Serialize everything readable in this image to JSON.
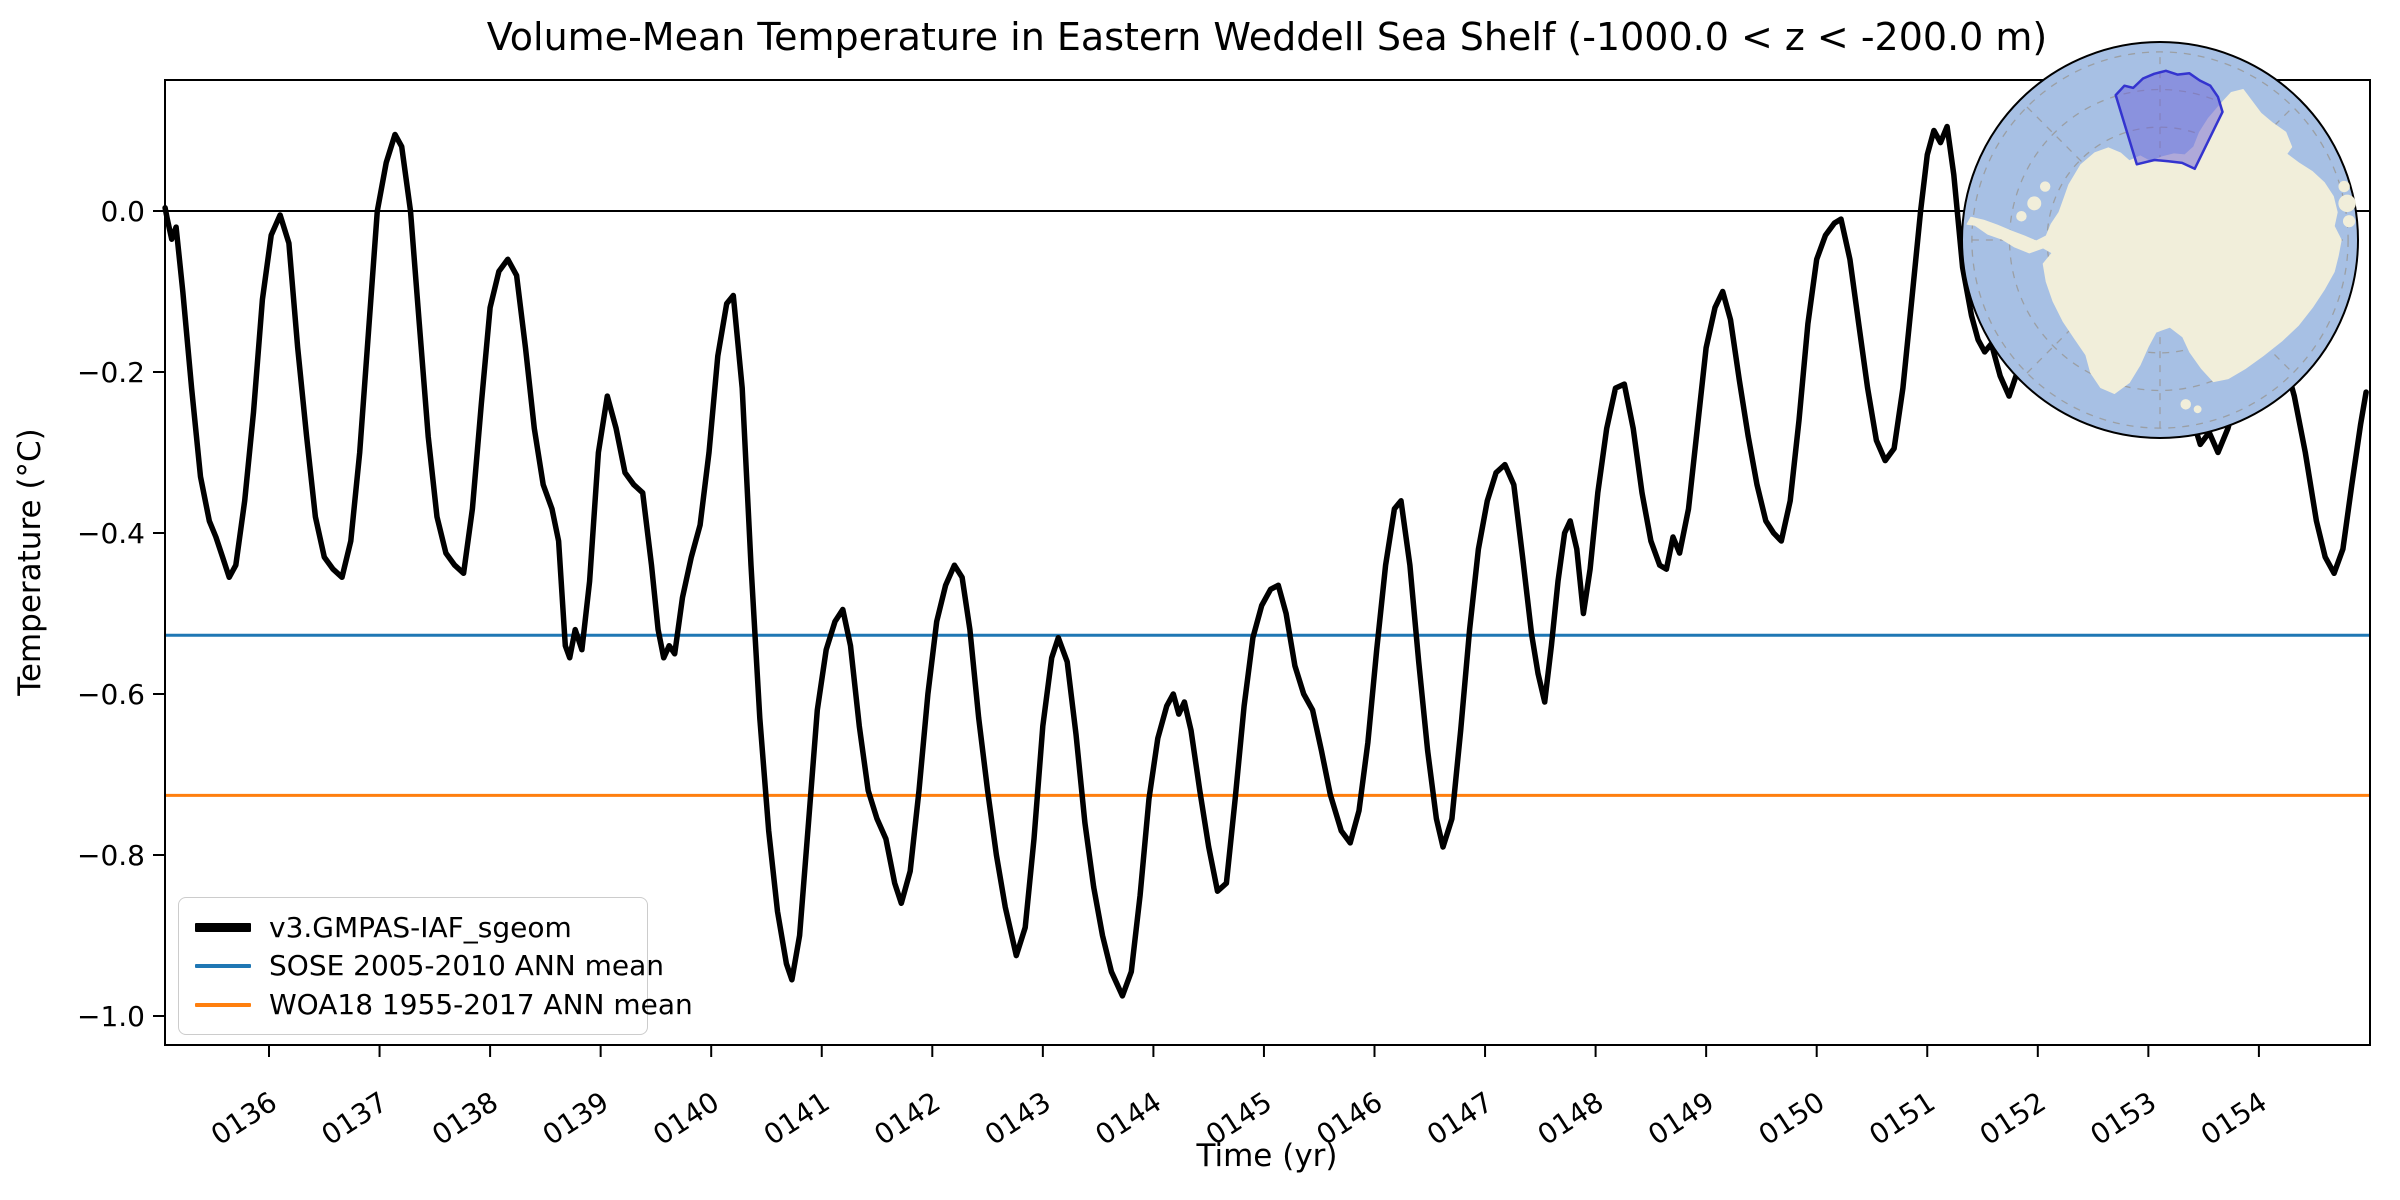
{
  "title": "Volume-Mean Temperature in Eastern Weddell Sea Shelf (-1000.0 < z < -200.0 m)",
  "xlabel": "Time (yr)",
  "ylabel": "Temperature (°C)",
  "legend": [
    {
      "label": "v3.GMPAS-IAF_sgeom",
      "color": "#000000"
    },
    {
      "label": "SOSE 2005-2010 ANN mean",
      "color": "#1f77b4"
    },
    {
      "label": "WOA18 1955-2017 ANN mean",
      "color": "#ff7f0e"
    }
  ],
  "chart_data": {
    "type": "line",
    "title": "Volume-Mean Temperature in Eastern Weddell Sea Shelf (-1000.0 < z < -200.0 m)",
    "xlabel": "Time (yr)",
    "ylabel": "Temperature (°C)",
    "xlim": [
      135.05,
      155.0
    ],
    "ylim": [
      -1.036,
      0.163
    ],
    "grid": false,
    "legend_position": "lower left",
    "x_tick_rotation": 33,
    "x_ticks": [
      {
        "value": 136,
        "label": "0136"
      },
      {
        "value": 137,
        "label": "0137"
      },
      {
        "value": 138,
        "label": "0138"
      },
      {
        "value": 139,
        "label": "0139"
      },
      {
        "value": 140,
        "label": "0140"
      },
      {
        "value": 141,
        "label": "0141"
      },
      {
        "value": 142,
        "label": "0142"
      },
      {
        "value": 143,
        "label": "0143"
      },
      {
        "value": 144,
        "label": "0144"
      },
      {
        "value": 145,
        "label": "0145"
      },
      {
        "value": 146,
        "label": "0146"
      },
      {
        "value": 147,
        "label": "0147"
      },
      {
        "value": 148,
        "label": "0148"
      },
      {
        "value": 149,
        "label": "0149"
      },
      {
        "value": 150,
        "label": "0150"
      },
      {
        "value": 151,
        "label": "0151"
      },
      {
        "value": 152,
        "label": "0152"
      },
      {
        "value": 153,
        "label": "0153"
      },
      {
        "value": 154,
        "label": "0154"
      }
    ],
    "y_ticks": [
      {
        "value": 0.0,
        "label": "0.0"
      },
      {
        "value": -0.2,
        "label": "−0.2"
      },
      {
        "value": -0.4,
        "label": "−0.4"
      },
      {
        "value": -0.6,
        "label": "−0.6"
      },
      {
        "value": -0.8,
        "label": "−0.8"
      },
      {
        "value": -1.0,
        "label": "−1.0"
      }
    ],
    "reference_lines": [
      {
        "name": "zero-line",
        "value": 0.0,
        "color": "#000000",
        "width": 2
      },
      {
        "name": "SOSE 2005-2010 ANN mean",
        "value": -0.527,
        "color": "#1f77b4",
        "width": 3
      },
      {
        "name": "WOA18 1955-2017 ANN mean",
        "value": -0.726,
        "color": "#ff7f0e",
        "width": 3
      }
    ],
    "series": [
      {
        "name": "v3.GMPAS-IAF_sgeom",
        "color": "#000000",
        "width": 5.5,
        "points": [
          [
            135.06,
            0.004
          ],
          [
            135.08,
            -0.01
          ],
          [
            135.12,
            -0.035
          ],
          [
            135.16,
            -0.02
          ],
          [
            135.22,
            -0.1
          ],
          [
            135.3,
            -0.22
          ],
          [
            135.38,
            -0.33
          ],
          [
            135.46,
            -0.385
          ],
          [
            135.52,
            -0.405
          ],
          [
            135.58,
            -0.43
          ],
          [
            135.64,
            -0.455
          ],
          [
            135.7,
            -0.44
          ],
          [
            135.78,
            -0.36
          ],
          [
            135.86,
            -0.25
          ],
          [
            135.94,
            -0.11
          ],
          [
            136.02,
            -0.03
          ],
          [
            136.1,
            -0.005
          ],
          [
            136.18,
            -0.04
          ],
          [
            136.26,
            -0.17
          ],
          [
            136.34,
            -0.28
          ],
          [
            136.42,
            -0.38
          ],
          [
            136.5,
            -0.43
          ],
          [
            136.58,
            -0.445
          ],
          [
            136.66,
            -0.455
          ],
          [
            136.74,
            -0.41
          ],
          [
            136.82,
            -0.3
          ],
          [
            136.9,
            -0.15
          ],
          [
            136.98,
            0.0
          ],
          [
            137.06,
            0.06
          ],
          [
            137.14,
            0.095
          ],
          [
            137.2,
            0.08
          ],
          [
            137.28,
            0.0
          ],
          [
            137.36,
            -0.14
          ],
          [
            137.44,
            -0.28
          ],
          [
            137.52,
            -0.38
          ],
          [
            137.6,
            -0.425
          ],
          [
            137.68,
            -0.44
          ],
          [
            137.76,
            -0.45
          ],
          [
            137.84,
            -0.37
          ],
          [
            137.92,
            -0.24
          ],
          [
            138.0,
            -0.12
          ],
          [
            138.08,
            -0.075
          ],
          [
            138.16,
            -0.06
          ],
          [
            138.24,
            -0.08
          ],
          [
            138.32,
            -0.17
          ],
          [
            138.4,
            -0.27
          ],
          [
            138.48,
            -0.34
          ],
          [
            138.56,
            -0.37
          ],
          [
            138.62,
            -0.41
          ],
          [
            138.68,
            -0.54
          ],
          [
            138.72,
            -0.555
          ],
          [
            138.77,
            -0.52
          ],
          [
            138.83,
            -0.545
          ],
          [
            138.9,
            -0.46
          ],
          [
            138.98,
            -0.3
          ],
          [
            139.06,
            -0.23
          ],
          [
            139.14,
            -0.27
          ],
          [
            139.22,
            -0.325
          ],
          [
            139.3,
            -0.34
          ],
          [
            139.38,
            -0.35
          ],
          [
            139.46,
            -0.44
          ],
          [
            139.52,
            -0.52
          ],
          [
            139.57,
            -0.555
          ],
          [
            139.62,
            -0.54
          ],
          [
            139.67,
            -0.55
          ],
          [
            139.74,
            -0.48
          ],
          [
            139.82,
            -0.43
          ],
          [
            139.9,
            -0.39
          ],
          [
            139.98,
            -0.3
          ],
          [
            140.06,
            -0.18
          ],
          [
            140.14,
            -0.115
          ],
          [
            140.2,
            -0.105
          ],
          [
            140.28,
            -0.22
          ],
          [
            140.36,
            -0.44
          ],
          [
            140.44,
            -0.63
          ],
          [
            140.52,
            -0.77
          ],
          [
            140.6,
            -0.87
          ],
          [
            140.68,
            -0.935
          ],
          [
            140.73,
            -0.955
          ],
          [
            140.8,
            -0.9
          ],
          [
            140.88,
            -0.76
          ],
          [
            140.96,
            -0.62
          ],
          [
            141.04,
            -0.545
          ],
          [
            141.12,
            -0.51
          ],
          [
            141.19,
            -0.495
          ],
          [
            141.26,
            -0.54
          ],
          [
            141.34,
            -0.64
          ],
          [
            141.42,
            -0.72
          ],
          [
            141.5,
            -0.755
          ],
          [
            141.58,
            -0.78
          ],
          [
            141.66,
            -0.835
          ],
          [
            141.72,
            -0.86
          ],
          [
            141.8,
            -0.82
          ],
          [
            141.88,
            -0.72
          ],
          [
            141.96,
            -0.6
          ],
          [
            142.04,
            -0.51
          ],
          [
            142.12,
            -0.465
          ],
          [
            142.2,
            -0.44
          ],
          [
            142.27,
            -0.455
          ],
          [
            142.34,
            -0.52
          ],
          [
            142.42,
            -0.63
          ],
          [
            142.5,
            -0.72
          ],
          [
            142.58,
            -0.8
          ],
          [
            142.66,
            -0.865
          ],
          [
            142.76,
            -0.925
          ],
          [
            142.84,
            -0.89
          ],
          [
            142.92,
            -0.78
          ],
          [
            143.0,
            -0.64
          ],
          [
            143.08,
            -0.555
          ],
          [
            143.14,
            -0.53
          ],
          [
            143.22,
            -0.56
          ],
          [
            143.3,
            -0.65
          ],
          [
            143.38,
            -0.76
          ],
          [
            143.46,
            -0.84
          ],
          [
            143.54,
            -0.9
          ],
          [
            143.62,
            -0.945
          ],
          [
            143.72,
            -0.975
          ],
          [
            143.8,
            -0.945
          ],
          [
            143.88,
            -0.85
          ],
          [
            143.96,
            -0.73
          ],
          [
            144.04,
            -0.655
          ],
          [
            144.12,
            -0.615
          ],
          [
            144.18,
            -0.6
          ],
          [
            144.23,
            -0.625
          ],
          [
            144.28,
            -0.61
          ],
          [
            144.34,
            -0.645
          ],
          [
            144.42,
            -0.72
          ],
          [
            144.5,
            -0.79
          ],
          [
            144.58,
            -0.845
          ],
          [
            144.66,
            -0.835
          ],
          [
            144.74,
            -0.73
          ],
          [
            144.82,
            -0.615
          ],
          [
            144.9,
            -0.53
          ],
          [
            144.98,
            -0.49
          ],
          [
            145.06,
            -0.47
          ],
          [
            145.13,
            -0.465
          ],
          [
            145.2,
            -0.5
          ],
          [
            145.28,
            -0.565
          ],
          [
            145.36,
            -0.6
          ],
          [
            145.44,
            -0.62
          ],
          [
            145.52,
            -0.67
          ],
          [
            145.6,
            -0.725
          ],
          [
            145.7,
            -0.77
          ],
          [
            145.78,
            -0.785
          ],
          [
            145.86,
            -0.745
          ],
          [
            145.94,
            -0.66
          ],
          [
            146.02,
            -0.545
          ],
          [
            146.1,
            -0.44
          ],
          [
            146.18,
            -0.37
          ],
          [
            146.24,
            -0.36
          ],
          [
            146.32,
            -0.44
          ],
          [
            146.4,
            -0.56
          ],
          [
            146.48,
            -0.67
          ],
          [
            146.56,
            -0.755
          ],
          [
            146.62,
            -0.79
          ],
          [
            146.7,
            -0.755
          ],
          [
            146.78,
            -0.645
          ],
          [
            146.86,
            -0.52
          ],
          [
            146.94,
            -0.42
          ],
          [
            147.02,
            -0.36
          ],
          [
            147.1,
            -0.325
          ],
          [
            147.18,
            -0.315
          ],
          [
            147.26,
            -0.34
          ],
          [
            147.34,
            -0.43
          ],
          [
            147.42,
            -0.525
          ],
          [
            147.48,
            -0.575
          ],
          [
            147.54,
            -0.61
          ],
          [
            147.6,
            -0.54
          ],
          [
            147.66,
            -0.46
          ],
          [
            147.72,
            -0.4
          ],
          [
            147.77,
            -0.385
          ],
          [
            147.83,
            -0.42
          ],
          [
            147.89,
            -0.5
          ],
          [
            147.95,
            -0.445
          ],
          [
            148.02,
            -0.35
          ],
          [
            148.1,
            -0.27
          ],
          [
            148.18,
            -0.22
          ],
          [
            148.26,
            -0.215
          ],
          [
            148.34,
            -0.27
          ],
          [
            148.42,
            -0.35
          ],
          [
            148.5,
            -0.41
          ],
          [
            148.58,
            -0.44
          ],
          [
            148.64,
            -0.445
          ],
          [
            148.7,
            -0.405
          ],
          [
            148.76,
            -0.425
          ],
          [
            148.84,
            -0.37
          ],
          [
            148.92,
            -0.27
          ],
          [
            149.0,
            -0.17
          ],
          [
            149.08,
            -0.12
          ],
          [
            149.15,
            -0.1
          ],
          [
            149.22,
            -0.135
          ],
          [
            149.3,
            -0.21
          ],
          [
            149.38,
            -0.28
          ],
          [
            149.46,
            -0.34
          ],
          [
            149.54,
            -0.385
          ],
          [
            149.61,
            -0.4
          ],
          [
            149.68,
            -0.41
          ],
          [
            149.76,
            -0.36
          ],
          [
            149.84,
            -0.26
          ],
          [
            149.92,
            -0.14
          ],
          [
            150.0,
            -0.06
          ],
          [
            150.08,
            -0.03
          ],
          [
            150.16,
            -0.015
          ],
          [
            150.22,
            -0.01
          ],
          [
            150.3,
            -0.06
          ],
          [
            150.38,
            -0.14
          ],
          [
            150.46,
            -0.22
          ],
          [
            150.54,
            -0.285
          ],
          [
            150.62,
            -0.31
          ],
          [
            150.7,
            -0.295
          ],
          [
            150.78,
            -0.22
          ],
          [
            150.86,
            -0.11
          ],
          [
            150.94,
            0.0
          ],
          [
            151.0,
            0.07
          ],
          [
            151.06,
            0.1
          ],
          [
            151.12,
            0.085
          ],
          [
            151.18,
            0.105
          ],
          [
            151.24,
            0.045
          ],
          [
            151.32,
            -0.07
          ],
          [
            151.4,
            -0.13
          ],
          [
            151.46,
            -0.16
          ],
          [
            151.52,
            -0.175
          ],
          [
            151.58,
            -0.165
          ],
          [
            151.66,
            -0.205
          ],
          [
            151.74,
            -0.23
          ],
          [
            151.84,
            -0.19
          ],
          [
            151.94,
            -0.11
          ],
          [
            152.06,
            -0.05
          ],
          [
            152.18,
            -0.09
          ],
          [
            152.3,
            -0.17
          ],
          [
            152.42,
            -0.23
          ],
          [
            152.54,
            -0.26
          ],
          [
            152.66,
            -0.235
          ],
          [
            152.78,
            -0.16
          ],
          [
            152.9,
            -0.1
          ],
          [
            153.02,
            -0.07
          ],
          [
            153.14,
            -0.1
          ],
          [
            153.26,
            -0.17
          ],
          [
            153.38,
            -0.25
          ],
          [
            153.47,
            -0.29
          ],
          [
            153.55,
            -0.275
          ],
          [
            153.63,
            -0.3
          ],
          [
            153.72,
            -0.27
          ],
          [
            153.82,
            -0.22
          ],
          [
            153.92,
            -0.18
          ],
          [
            154.02,
            -0.16
          ],
          [
            154.12,
            -0.155
          ],
          [
            154.22,
            -0.18
          ],
          [
            154.32,
            -0.23
          ],
          [
            154.42,
            -0.3
          ],
          [
            154.52,
            -0.385
          ],
          [
            154.6,
            -0.43
          ],
          [
            154.68,
            -0.45
          ],
          [
            154.76,
            -0.42
          ],
          [
            154.84,
            -0.34
          ],
          [
            154.92,
            -0.265
          ],
          [
            154.97,
            -0.225
          ]
        ]
      }
    ]
  },
  "inset_map": {
    "ocean_color": "#a7c0e4",
    "land_color": "#f1eeda",
    "graticule_color": "#999999",
    "outline_color": "#000000",
    "region_fill": "#6e64d8",
    "region_border": "#3434cf"
  }
}
